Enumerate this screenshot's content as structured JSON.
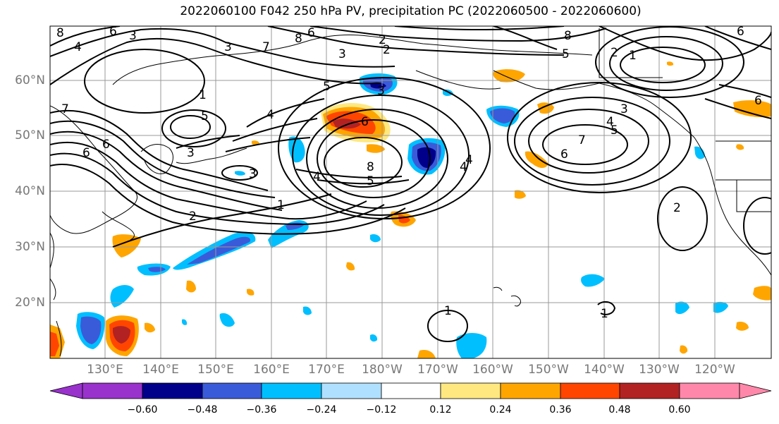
{
  "title": "2022060100 F042 250 hPa PV, precipitation PC (2022060500 - 2022060600)",
  "lat_labels": [
    "60°N",
    "50°N",
    "40°N",
    "30°N",
    "20°N"
  ],
  "lon_labels": [
    "130°E",
    "140°E",
    "150°E",
    "160°E",
    "170°E",
    "180°W",
    "170°W",
    "160°W",
    "150°W",
    "140°W",
    "130°W",
    "120°W"
  ],
  "contour_labels": [
    "8",
    "6",
    "4",
    "3",
    "3",
    "7",
    "6",
    "8",
    "2",
    "3",
    "2",
    "8",
    "6",
    "2",
    "1",
    "6",
    "5",
    "1",
    "5",
    "3",
    "4",
    "3",
    "5",
    "6",
    "8",
    "5",
    "4",
    "4",
    "3",
    "2",
    "1",
    "3",
    "5",
    "7",
    "6",
    "4",
    "4",
    "2",
    "1",
    "1",
    "6",
    "6",
    "7"
  ],
  "colorbar": {
    "labels": [
      "−0.60",
      "−0.48",
      "−0.36",
      "−0.24",
      "−0.12",
      "0.12",
      "0.24",
      "0.36",
      "0.48",
      "0.60"
    ],
    "colors": [
      "#9932cc",
      "#00008b",
      "#3a5bd9",
      "#00bfff",
      "#b0e0ff",
      "#ffffff",
      "#ffe880",
      "#ffa500",
      "#ff4500",
      "#b22222",
      "#ff88aa"
    ]
  },
  "colors": {
    "contour": "#000000",
    "grid": "#999999",
    "tick_text": "#777777"
  }
}
